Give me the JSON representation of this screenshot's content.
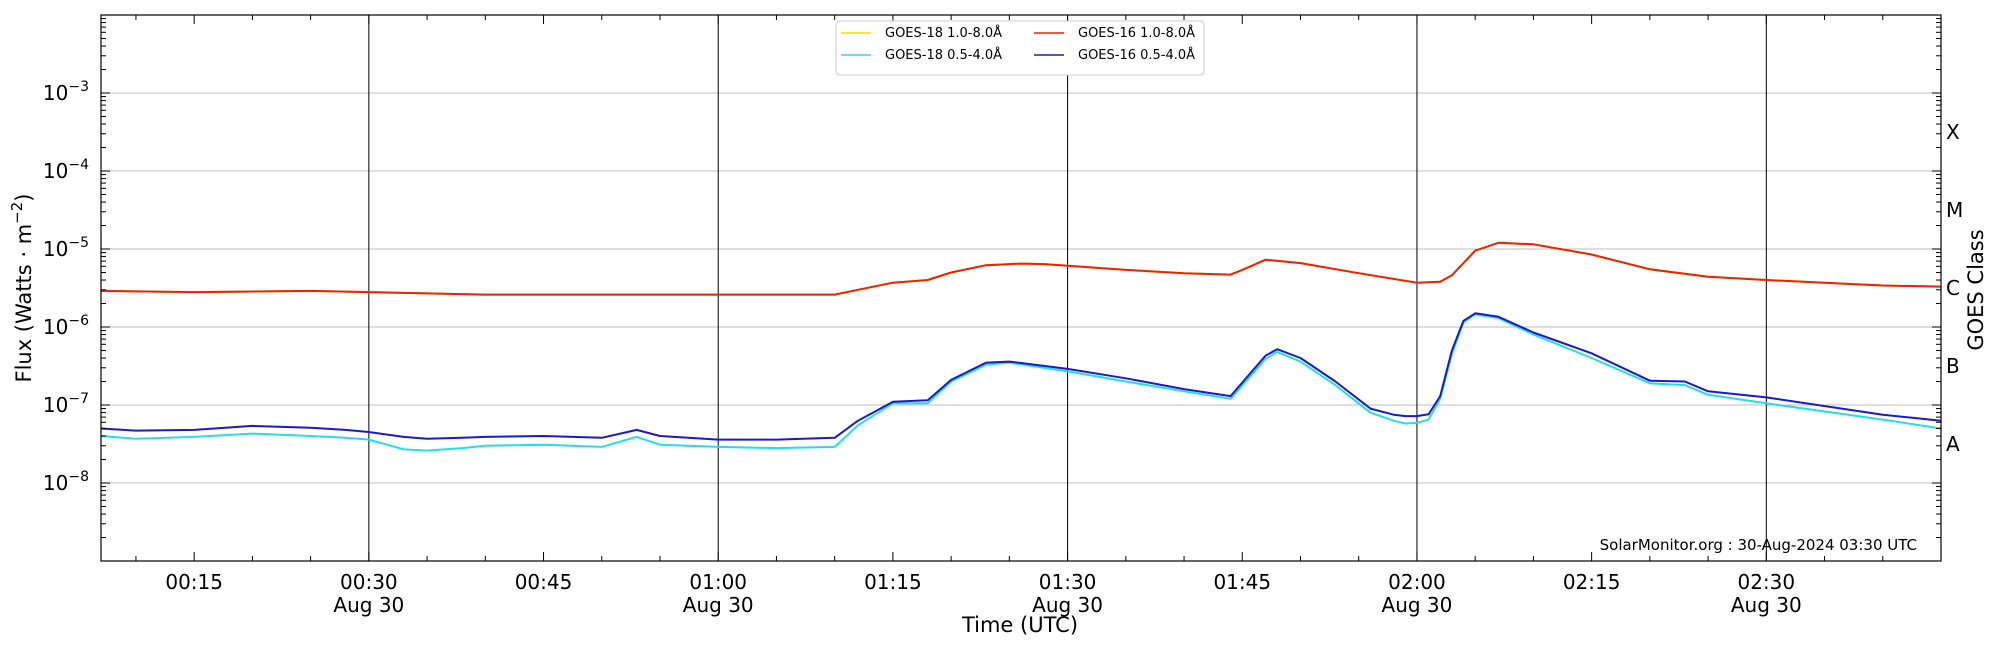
{
  "chart_data": {
    "type": "line",
    "title": "",
    "xlabel": "Time (UTC)",
    "ylabel": "Flux (Watts · m^-2)",
    "ylabel_parts": {
      "main": "Flux (Watts · m",
      "sup": "−2",
      "close": ")"
    },
    "right_label": "GOES Class",
    "y_scale": "log",
    "ylim": [
      1e-09,
      0.01
    ],
    "xlim": [
      "00:07",
      "02:45"
    ],
    "x_unit": "minutes after 00:00 UTC on 30-Aug-2024",
    "grid": "horizontal at decades",
    "legend_position": "top-center",
    "y_ticks": [
      {
        "value": 1e-08,
        "base": "10",
        "exp": "−8"
      },
      {
        "value": 1e-07,
        "base": "10",
        "exp": "−7"
      },
      {
        "value": 1e-06,
        "base": "10",
        "exp": "−6"
      },
      {
        "value": 1e-05,
        "base": "10",
        "exp": "−5"
      },
      {
        "value": 0.0001,
        "base": "10",
        "exp": "−4"
      },
      {
        "value": 0.001,
        "base": "10",
        "exp": "−3"
      }
    ],
    "x_ticks": [
      {
        "time": "00:15",
        "date": ""
      },
      {
        "time": "00:30",
        "date": "Aug 30"
      },
      {
        "time": "00:45",
        "date": ""
      },
      {
        "time": "01:00",
        "date": "Aug 30"
      },
      {
        "time": "01:15",
        "date": ""
      },
      {
        "time": "01:30",
        "date": "Aug 30"
      },
      {
        "time": "01:45",
        "date": ""
      },
      {
        "time": "02:00",
        "date": "Aug 30"
      },
      {
        "time": "02:15",
        "date": ""
      },
      {
        "time": "02:30",
        "date": "Aug 30"
      }
    ],
    "vertical_lines": [
      "00:30",
      "01:00",
      "01:30",
      "02:00",
      "02:30"
    ],
    "goes_classes": [
      {
        "label": "A",
        "value": 3.16e-08
      },
      {
        "label": "B",
        "value": 3.16e-07
      },
      {
        "label": "C",
        "value": 3.16e-06
      },
      {
        "label": "M",
        "value": 3.16e-05
      },
      {
        "label": "X",
        "value": 0.000316
      }
    ],
    "credit": "SolarMonitor.org : 30-Aug-2024 03:30 UTC",
    "legend_order": [
      "GOES-18 1.0-8.0Å",
      "GOES-18 0.5-4.0Å",
      "GOES-16 1.0-8.0Å",
      "GOES-16 0.5-4.0Å"
    ],
    "series": [
      {
        "name": "GOES-18 1.0-8.0Å",
        "color": "#ffd700",
        "x": [
          7,
          15,
          25,
          30,
          40,
          50,
          60,
          70,
          72,
          75,
          78,
          80,
          83,
          86,
          88,
          90,
          95,
          100,
          104,
          105,
          107,
          110,
          115,
          120,
          122,
          123,
          125,
          127,
          130,
          135,
          140,
          145,
          150,
          155,
          160,
          165
        ],
        "y": [
          2.9e-06,
          2.8e-06,
          2.9e-06,
          2.8e-06,
          2.6e-06,
          2.6e-06,
          2.6e-06,
          2.6e-06,
          3e-06,
          3.7e-06,
          4e-06,
          5e-06,
          6.2e-06,
          6.5e-06,
          6.4e-06,
          6.1e-06,
          5.4e-06,
          4.9e-06,
          4.7e-06,
          5.4e-06,
          7.3e-06,
          6.6e-06,
          4.9e-06,
          3.7e-06,
          3.8e-06,
          4.6e-06,
          9.5e-06,
          1.2e-05,
          1.15e-05,
          8.5e-06,
          5.5e-06,
          4.4e-06,
          4e-06,
          3.7e-06,
          3.4e-06,
          3.3e-06
        ]
      },
      {
        "name": "GOES-16 1.0-8.0Å",
        "color": "#ee2200",
        "x": [
          7,
          15,
          25,
          30,
          40,
          50,
          60,
          70,
          72,
          75,
          78,
          80,
          83,
          86,
          88,
          90,
          95,
          100,
          104,
          105,
          107,
          110,
          115,
          120,
          122,
          123,
          125,
          127,
          130,
          135,
          140,
          145,
          150,
          155,
          160,
          165
        ],
        "y": [
          2.9e-06,
          2.8e-06,
          2.9e-06,
          2.8e-06,
          2.6e-06,
          2.6e-06,
          2.6e-06,
          2.6e-06,
          3e-06,
          3.7e-06,
          4e-06,
          5e-06,
          6.2e-06,
          6.5e-06,
          6.4e-06,
          6.1e-06,
          5.4e-06,
          4.9e-06,
          4.7e-06,
          5.4e-06,
          7.3e-06,
          6.6e-06,
          4.9e-06,
          3.7e-06,
          3.8e-06,
          4.6e-06,
          9.5e-06,
          1.2e-05,
          1.15e-05,
          8.5e-06,
          5.5e-06,
          4.4e-06,
          4e-06,
          3.7e-06,
          3.4e-06,
          3.3e-06
        ]
      },
      {
        "name": "GOES-18 0.5-4.0Å",
        "color": "#22ddee",
        "x": [
          7,
          10,
          15,
          20,
          25,
          28,
          30,
          33,
          35,
          38,
          40,
          45,
          50,
          53,
          55,
          60,
          65,
          70,
          72,
          75,
          78,
          80,
          83,
          85,
          90,
          95,
          100,
          104,
          107,
          108,
          110,
          113,
          116,
          118,
          119,
          120,
          121,
          122,
          123,
          124,
          125,
          127,
          130,
          135,
          140,
          143,
          145,
          150,
          160,
          165
        ],
        "y": [
          4e-08,
          3.7e-08,
          3.9e-08,
          4.3e-08,
          4e-08,
          3.8e-08,
          3.6e-08,
          2.7e-08,
          2.6e-08,
          2.8e-08,
          3e-08,
          3.1e-08,
          2.9e-08,
          3.9e-08,
          3.1e-08,
          2.9e-08,
          2.8e-08,
          2.9e-08,
          5.5e-08,
          1.05e-07,
          1.05e-07,
          2e-07,
          3.3e-07,
          3.5e-07,
          2.7e-07,
          2e-07,
          1.5e-07,
          1.2e-07,
          3.9e-07,
          4.8e-07,
          3.6e-07,
          1.8e-07,
          8e-08,
          6.3e-08,
          5.8e-08,
          5.9e-08,
          6.5e-08,
          1.2e-07,
          4.5e-07,
          1.15e-06,
          1.45e-06,
          1.3e-06,
          8e-07,
          4e-07,
          1.9e-07,
          1.8e-07,
          1.35e-07,
          1.05e-07,
          6.5e-08,
          5e-08
        ]
      },
      {
        "name": "GOES-16 0.5-4.0Å",
        "color": "#1a1acc",
        "x": [
          7,
          10,
          15,
          20,
          25,
          28,
          30,
          33,
          35,
          38,
          40,
          45,
          50,
          53,
          55,
          60,
          65,
          70,
          72,
          75,
          78,
          80,
          83,
          85,
          90,
          95,
          100,
          104,
          107,
          108,
          110,
          113,
          116,
          118,
          119,
          120,
          121,
          122,
          123,
          124,
          125,
          127,
          130,
          135,
          140,
          143,
          145,
          150,
          160,
          165
        ],
        "y": [
          5e-08,
          4.7e-08,
          4.8e-08,
          5.4e-08,
          5.1e-08,
          4.8e-08,
          4.5e-08,
          3.9e-08,
          3.7e-08,
          3.8e-08,
          3.9e-08,
          4e-08,
          3.8e-08,
          4.8e-08,
          4e-08,
          3.6e-08,
          3.6e-08,
          3.8e-08,
          6.3e-08,
          1.1e-07,
          1.15e-07,
          2.1e-07,
          3.5e-07,
          3.6e-07,
          2.9e-07,
          2.2e-07,
          1.6e-07,
          1.3e-07,
          4.3e-07,
          5.2e-07,
          4e-07,
          2e-07,
          9e-08,
          7.5e-08,
          7.2e-08,
          7.2e-08,
          7.6e-08,
          1.3e-07,
          5e-07,
          1.2e-06,
          1.5e-06,
          1.35e-06,
          8.5e-07,
          4.6e-07,
          2.05e-07,
          2e-07,
          1.5e-07,
          1.25e-07,
          7.5e-08,
          6.3e-08
        ]
      }
    ]
  }
}
